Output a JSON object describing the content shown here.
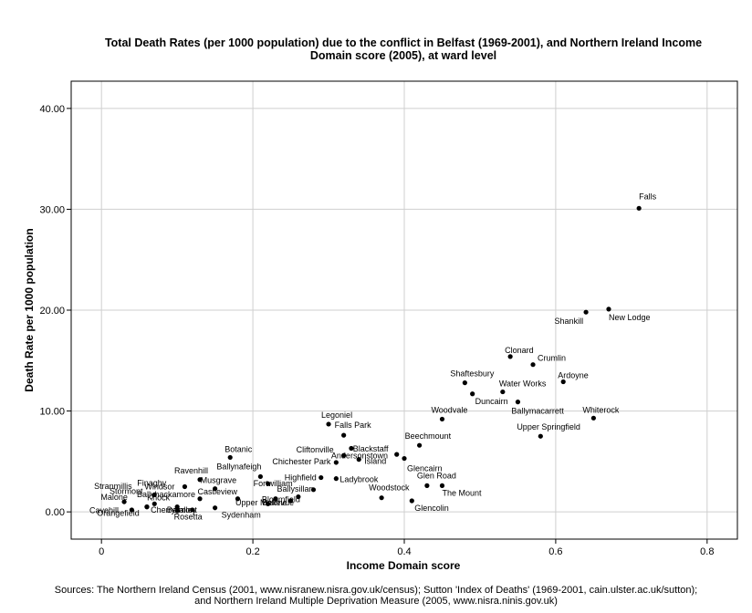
{
  "title_line1": "Total Death Rates (per 1000 population) due to the conflict in Belfast (1969-2001), and Northern Ireland Income",
  "title_line2": "Domain score (2005), at ward level",
  "footer_line1": "Sources: The Northern Ireland Census (2001, www.nisranew.nisra.gov.uk/census); Sutton 'Index of Deaths' (1969-2001, cain.ulster.ac.uk/sutton);",
  "footer_line2": "and Northern Ireland Multiple Deprivation Measure (2005, www.nisra.ninis.gov.uk)",
  "chart_data": {
    "type": "scatter",
    "xlabel": "Income Domain score",
    "ylabel": "Death Rate per 1000 population",
    "xlim": [
      -0.04,
      0.84
    ],
    "ylim": [
      -2.7,
      42.7
    ],
    "xticks": [
      0,
      0.2,
      0.4,
      0.6,
      0.8
    ],
    "xtick_labels": [
      "0",
      "0.2",
      "0.4",
      "0.6",
      "0.8"
    ],
    "yticks": [
      0,
      10,
      20,
      30,
      40
    ],
    "ytick_labels": [
      "0.00",
      "10.00",
      "20.00",
      "30.00",
      "40.00"
    ],
    "grid": true,
    "points": [
      {
        "label": "Falls",
        "x": 0.71,
        "y": 30.1
      },
      {
        "label": "New Lodge",
        "x": 0.67,
        "y": 20.1
      },
      {
        "label": "Shankill",
        "x": 0.64,
        "y": 19.8
      },
      {
        "label": "Clonard",
        "x": 0.54,
        "y": 15.4
      },
      {
        "label": "Crumlin",
        "x": 0.57,
        "y": 14.6
      },
      {
        "label": "Ardoyne",
        "x": 0.61,
        "y": 12.9
      },
      {
        "label": "Shaftesbury",
        "x": 0.48,
        "y": 12.8
      },
      {
        "label": "Water Works",
        "x": 0.53,
        "y": 11.9
      },
      {
        "label": "Duncairn",
        "x": 0.49,
        "y": 11.7
      },
      {
        "label": "Ballymacarrett",
        "x": 0.55,
        "y": 10.9
      },
      {
        "label": "Whiterock",
        "x": 0.65,
        "y": 9.3
      },
      {
        "label": "Woodvale",
        "x": 0.45,
        "y": 9.2
      },
      {
        "label": "Upper Springfield",
        "x": 0.58,
        "y": 7.5
      },
      {
        "label": "Legoniel",
        "x": 0.3,
        "y": 8.7
      },
      {
        "label": "Falls Park",
        "x": 0.32,
        "y": 7.6
      },
      {
        "label": "Beechmount",
        "x": 0.42,
        "y": 6.6
      },
      {
        "label": "Andersonstown",
        "x": 0.33,
        "y": 6.3
      },
      {
        "label": "Blackstaff",
        "x": 0.39,
        "y": 5.7
      },
      {
        "label": "Cliftonville",
        "x": 0.32,
        "y": 5.6
      },
      {
        "label": "Glencairn",
        "x": 0.4,
        "y": 5.3
      },
      {
        "label": "Island",
        "x": 0.34,
        "y": 5.2
      },
      {
        "label": "Chichester Park",
        "x": 0.31,
        "y": 4.9
      },
      {
        "label": "Botanic",
        "x": 0.17,
        "y": 5.4
      },
      {
        "label": "Ballynafeigh",
        "x": 0.21,
        "y": 3.5
      },
      {
        "label": "Highfield",
        "x": 0.29,
        "y": 3.4
      },
      {
        "label": "Ladybrook",
        "x": 0.31,
        "y": 3.3
      },
      {
        "label": "Ravenhill",
        "x": 0.13,
        "y": 3.2
      },
      {
        "label": "Fortwilliam",
        "x": 0.22,
        "y": 2.8
      },
      {
        "label": "Windsor",
        "x": 0.11,
        "y": 2.5
      },
      {
        "label": "Musgrave",
        "x": 0.15,
        "y": 2.3
      },
      {
        "label": "Glen Road",
        "x": 0.43,
        "y": 2.6
      },
      {
        "label": "The Mount",
        "x": 0.45,
        "y": 2.6
      },
      {
        "label": "Ballysillan",
        "x": 0.28,
        "y": 2.2
      },
      {
        "label": "Stranmillis",
        "x": 0.03,
        "y": 1.0
      },
      {
        "label": "Finaghy",
        "x": 0.07,
        "y": 1.7
      },
      {
        "label": "Stormont",
        "x": 0.06,
        "y": 0.5
      },
      {
        "label": "Ballyhackamore",
        "x": 0.13,
        "y": 1.3
      },
      {
        "label": "Castleview",
        "x": 0.18,
        "y": 1.3
      },
      {
        "label": "Bloomfield",
        "x": 0.26,
        "y": 1.5
      },
      {
        "label": "Woodstock",
        "x": 0.37,
        "y": 1.4
      },
      {
        "label": "Glencolin",
        "x": 0.41,
        "y": 1.1
      },
      {
        "label": "Knock",
        "x": 0.1,
        "y": 0.5
      },
      {
        "label": "Malone",
        "x": 0.04,
        "y": 0.2
      },
      {
        "label": "Cavehill",
        "x": 0.06,
        "y": 0.5
      },
      {
        "label": "Cherryvalley",
        "x": 0.1,
        "y": 0.1
      },
      {
        "label": "Belmont",
        "x": 0.12,
        "y": 0.2
      },
      {
        "label": "Orangefield",
        "x": 0.07,
        "y": 0.8
      },
      {
        "label": "Rosetta",
        "x": 0.15,
        "y": 0.4
      },
      {
        "label": "Upper Malone",
        "x": 0.23,
        "y": 1.3
      },
      {
        "label": "Bellevue",
        "x": 0.25,
        "y": 1.1
      },
      {
        "label": "Sydenham",
        "x": 0.22,
        "y": 0.8
      }
    ]
  }
}
